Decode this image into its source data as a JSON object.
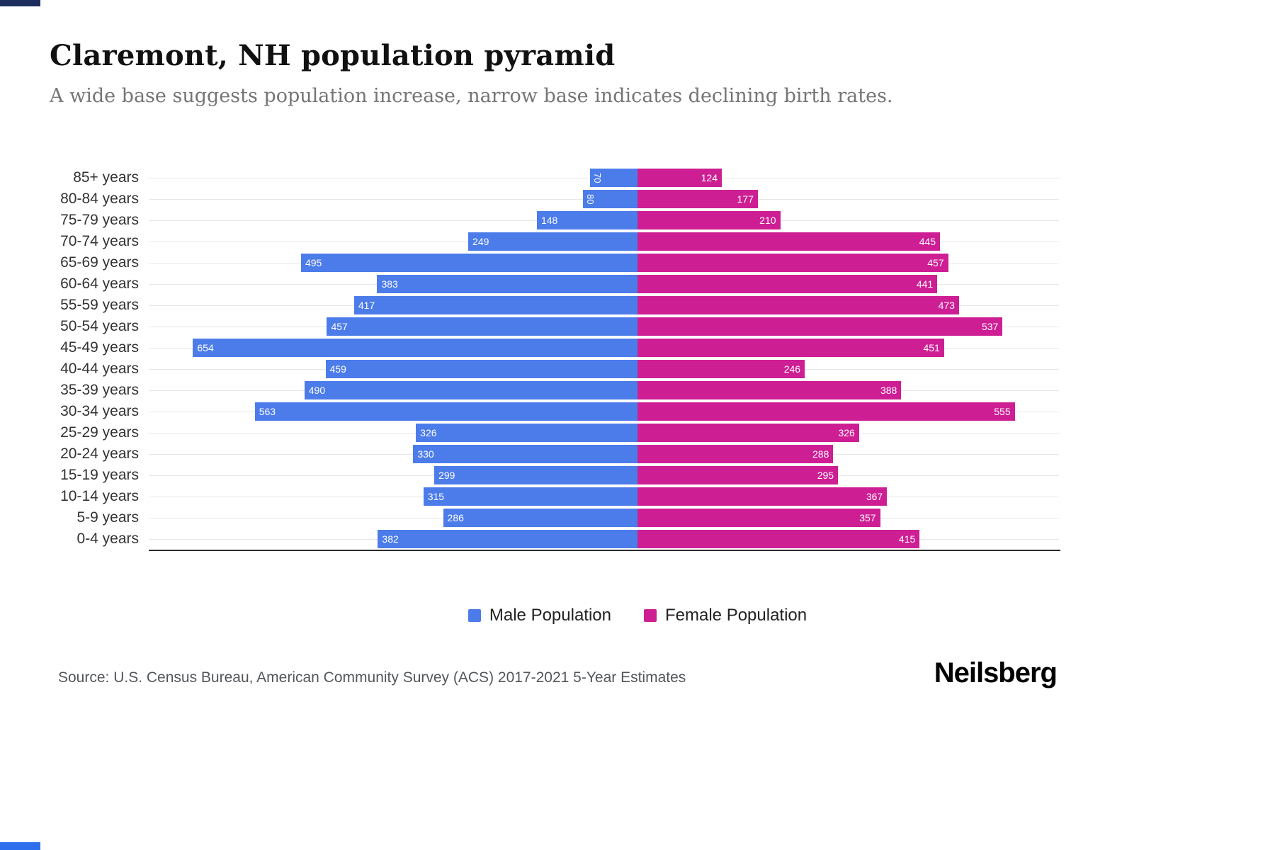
{
  "header": {
    "title": "Claremont, NH population pyramid",
    "subtitle": "A wide base suggests population increase, narrow base indicates declining birth rates."
  },
  "chart_data": {
    "type": "bar",
    "variant": "population-pyramid",
    "orientation": "horizontal",
    "categories": [
      "85+ years",
      "80-84 years",
      "75-79 years",
      "70-74 years",
      "65-69 years",
      "60-64 years",
      "55-59 years",
      "50-54 years",
      "45-49 years",
      "40-44 years",
      "35-39 years",
      "30-34 years",
      "25-29 years",
      "20-24 years",
      "15-19 years",
      "10-14 years",
      "5-9 years",
      "0-4 years"
    ],
    "series": [
      {
        "name": "Male Population",
        "color": "#4C7CEA",
        "values": [
          70,
          80,
          148,
          249,
          495,
          383,
          417,
          457,
          654,
          459,
          490,
          563,
          326,
          330,
          299,
          315,
          286,
          382
        ]
      },
      {
        "name": "Female Population",
        "color": "#CE1E94",
        "values": [
          124,
          177,
          210,
          445,
          457,
          441,
          473,
          537,
          451,
          246,
          388,
          555,
          326,
          288,
          295,
          367,
          357,
          415
        ]
      }
    ],
    "axis_max_male": 719,
    "axis_max_female": 620,
    "grid": "horizontal-light",
    "legend_position": "bottom",
    "value_labels": "inside-bar-ends",
    "rotated_label_threshold": 100
  },
  "legend": {
    "male_label": "Male Population",
    "female_label": "Female Population"
  },
  "footer": {
    "source": "Source: U.S. Census Bureau, American Community Survey (ACS) 2017-2021 5-Year Estimates",
    "brand": "Neilsberg"
  }
}
